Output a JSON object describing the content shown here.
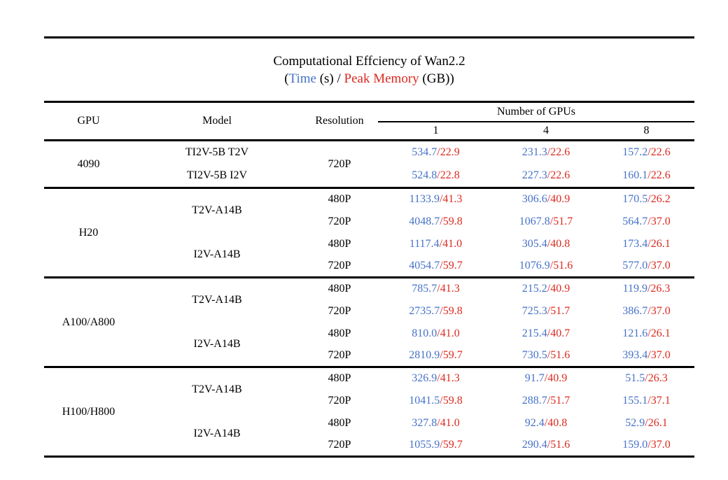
{
  "title": "Computational Effciency of Wan2.2",
  "subtitle": {
    "prefix": "(",
    "time_label": "Time",
    "time_unit": " (s) / ",
    "memory_label": "Peak Memory",
    "memory_unit": " (GB))"
  },
  "colors": {
    "time": "#4672C8",
    "memory": "#DB2A20",
    "text": "#000000",
    "background": "#ffffff"
  },
  "value_separator": "/",
  "header": {
    "gpu": "GPU",
    "model": "Model",
    "resolution": "Resolution",
    "gpus_group": "Number of GPUs",
    "gpu_counts": [
      "1",
      "4",
      "8"
    ]
  },
  "rows": [
    {
      "section_start": true,
      "gpu": {
        "text": "4090",
        "span": 2
      },
      "model": {
        "text": "TI2V-5B T2V",
        "span": 1
      },
      "resolution": {
        "text": "720P",
        "span": 2
      },
      "values": [
        {
          "time": "534.7",
          "memory": "22.9"
        },
        {
          "time": "231.3",
          "memory": "22.6"
        },
        {
          "time": "157.2",
          "memory": "22.6"
        }
      ]
    },
    {
      "model": {
        "text": "TI2V-5B I2V",
        "span": 1
      },
      "values": [
        {
          "time": "524.8",
          "memory": "22.8"
        },
        {
          "time": "227.3",
          "memory": "22.6"
        },
        {
          "time": "160.1",
          "memory": "22.6"
        }
      ]
    },
    {
      "section_start": true,
      "gpu": {
        "text": "H20",
        "span": 4
      },
      "model": {
        "text": "T2V-A14B",
        "span": 2
      },
      "resolution": {
        "text": "480P",
        "span": 1
      },
      "values": [
        {
          "time": "1133.9",
          "memory": "41.3"
        },
        {
          "time": "306.6",
          "memory": "40.9"
        },
        {
          "time": "170.5",
          "memory": "26.2"
        }
      ]
    },
    {
      "resolution": {
        "text": "720P",
        "span": 1
      },
      "values": [
        {
          "time": "4048.7",
          "memory": "59.8"
        },
        {
          "time": "1067.8",
          "memory": "51.7"
        },
        {
          "time": "564.7",
          "memory": "37.0"
        }
      ]
    },
    {
      "model": {
        "text": "I2V-A14B",
        "span": 2
      },
      "resolution": {
        "text": "480P",
        "span": 1
      },
      "values": [
        {
          "time": "1117.4",
          "memory": "41.0"
        },
        {
          "time": "305.4",
          "memory": "40.8"
        },
        {
          "time": "173.4",
          "memory": "26.1"
        }
      ]
    },
    {
      "resolution": {
        "text": "720P",
        "span": 1
      },
      "values": [
        {
          "time": "4054.7",
          "memory": "59.7"
        },
        {
          "time": "1076.9",
          "memory": "51.6"
        },
        {
          "time": "577.0",
          "memory": "37.0"
        }
      ]
    },
    {
      "section_start": true,
      "gpu": {
        "text": "A100/A800",
        "span": 4
      },
      "model": {
        "text": "T2V-A14B",
        "span": 2
      },
      "resolution": {
        "text": "480P",
        "span": 1
      },
      "values": [
        {
          "time": "785.7",
          "memory": "41.3"
        },
        {
          "time": "215.2",
          "memory": "40.9"
        },
        {
          "time": "119.9",
          "memory": "26.3"
        }
      ]
    },
    {
      "resolution": {
        "text": "720P",
        "span": 1
      },
      "values": [
        {
          "time": "2735.7",
          "memory": "59.8"
        },
        {
          "time": "725.3",
          "memory": "51.7"
        },
        {
          "time": "386.7",
          "memory": "37.0"
        }
      ]
    },
    {
      "model": {
        "text": "I2V-A14B",
        "span": 2
      },
      "resolution": {
        "text": "480P",
        "span": 1
      },
      "values": [
        {
          "time": "810.0",
          "memory": "41.0"
        },
        {
          "time": "215.4",
          "memory": "40.7"
        },
        {
          "time": "121.6",
          "memory": "26.1"
        }
      ]
    },
    {
      "resolution": {
        "text": "720P",
        "span": 1
      },
      "values": [
        {
          "time": "2810.9",
          "memory": "59.7"
        },
        {
          "time": "730.5",
          "memory": "51.6"
        },
        {
          "time": "393.4",
          "memory": "37.0"
        }
      ]
    },
    {
      "section_start": true,
      "gpu": {
        "text": "H100/H800",
        "span": 4
      },
      "model": {
        "text": "T2V-A14B",
        "span": 2
      },
      "resolution": {
        "text": "480P",
        "span": 1
      },
      "values": [
        {
          "time": "326.9",
          "memory": "41.3"
        },
        {
          "time": "91.7",
          "memory": "40.9"
        },
        {
          "time": "51.5",
          "memory": "26.3"
        }
      ]
    },
    {
      "resolution": {
        "text": "720P",
        "span": 1
      },
      "values": [
        {
          "time": "1041.5",
          "memory": "59.8"
        },
        {
          "time": "288.7",
          "memory": "51.7"
        },
        {
          "time": "155.1",
          "memory": "37.1"
        }
      ]
    },
    {
      "model": {
        "text": "I2V-A14B",
        "span": 2
      },
      "resolution": {
        "text": "480P",
        "span": 1
      },
      "values": [
        {
          "time": "327.8",
          "memory": "41.0"
        },
        {
          "time": "92.4",
          "memory": "40.8"
        },
        {
          "time": "52.9",
          "memory": "26.1"
        }
      ]
    },
    {
      "resolution": {
        "text": "720P",
        "span": 1
      },
      "values": [
        {
          "time": "1055.9",
          "memory": "59.7"
        },
        {
          "time": "290.4",
          "memory": "51.6"
        },
        {
          "time": "159.0",
          "memory": "37.0"
        }
      ]
    }
  ]
}
